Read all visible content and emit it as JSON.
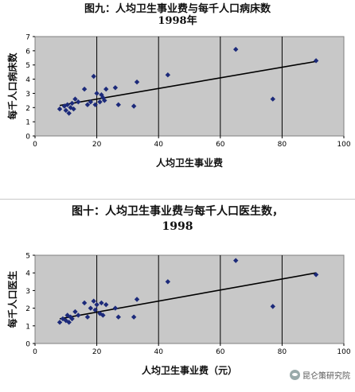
{
  "chart_data": [
    {
      "type": "scatter",
      "title": "图九：人均卫生事业费与每千人口病床数",
      "subtitle": "1998年",
      "xlabel": "人均卫生事业费",
      "ylabel": "每千人口病床数",
      "xlim": [
        0,
        100
      ],
      "ylim": [
        0,
        7
      ],
      "xticks": [
        0,
        20,
        40,
        60,
        80,
        100
      ],
      "yticks": [
        0,
        1,
        2,
        3,
        4,
        5,
        6,
        7
      ],
      "grid": "vertical",
      "marker_color": "#1c2a7a",
      "points": [
        {
          "x": 8,
          "y": 1.9
        },
        {
          "x": 9.5,
          "y": 2.1
        },
        {
          "x": 10,
          "y": 1.8
        },
        {
          "x": 10.5,
          "y": 2.2
        },
        {
          "x": 11,
          "y": 1.6
        },
        {
          "x": 11.5,
          "y": 2.0
        },
        {
          "x": 12,
          "y": 2.3
        },
        {
          "x": 12.5,
          "y": 1.9
        },
        {
          "x": 13,
          "y": 2.6
        },
        {
          "x": 14,
          "y": 2.4
        },
        {
          "x": 16,
          "y": 3.3
        },
        {
          "x": 17,
          "y": 2.2
        },
        {
          "x": 18,
          "y": 2.4
        },
        {
          "x": 19,
          "y": 4.2
        },
        {
          "x": 19.5,
          "y": 2.2
        },
        {
          "x": 20,
          "y": 3.0
        },
        {
          "x": 21,
          "y": 2.4
        },
        {
          "x": 21.5,
          "y": 2.9
        },
        {
          "x": 22,
          "y": 2.7
        },
        {
          "x": 22.5,
          "y": 2.5
        },
        {
          "x": 23,
          "y": 3.3
        },
        {
          "x": 26,
          "y": 3.4
        },
        {
          "x": 27,
          "y": 2.2
        },
        {
          "x": 32,
          "y": 2.1
        },
        {
          "x": 33,
          "y": 3.8
        },
        {
          "x": 43,
          "y": 4.3
        },
        {
          "x": 65,
          "y": 6.1
        },
        {
          "x": 77,
          "y": 2.6
        },
        {
          "x": 91,
          "y": 5.3
        }
      ],
      "trendline": [
        [
          8,
          2.15
        ],
        [
          91,
          5.25
        ]
      ]
    },
    {
      "type": "scatter",
      "title": "图十：人均卫生事业费与每千人口医生数，",
      "subtitle": "1998",
      "xlabel": "人均卫生事业费（元）",
      "ylabel": "每千人口医生",
      "xlim": [
        0,
        100
      ],
      "ylim": [
        0,
        5
      ],
      "xticks": [
        0,
        20,
        40,
        60,
        80,
        100
      ],
      "yticks": [
        0,
        1,
        2,
        3,
        4,
        5
      ],
      "grid": "vertical",
      "marker_color": "#1c2a7a",
      "points": [
        {
          "x": 8,
          "y": 1.2
        },
        {
          "x": 9,
          "y": 1.4
        },
        {
          "x": 10,
          "y": 1.3
        },
        {
          "x": 10.5,
          "y": 1.6
        },
        {
          "x": 11,
          "y": 1.2
        },
        {
          "x": 11.5,
          "y": 1.5
        },
        {
          "x": 12,
          "y": 1.4
        },
        {
          "x": 13,
          "y": 1.8
        },
        {
          "x": 14,
          "y": 1.6
        },
        {
          "x": 16,
          "y": 2.3
        },
        {
          "x": 17,
          "y": 1.5
        },
        {
          "x": 18,
          "y": 2.0
        },
        {
          "x": 19,
          "y": 2.4
        },
        {
          "x": 19.5,
          "y": 1.9
        },
        {
          "x": 20,
          "y": 2.2
        },
        {
          "x": 21,
          "y": 1.7
        },
        {
          "x": 21.5,
          "y": 2.3
        },
        {
          "x": 22,
          "y": 1.6
        },
        {
          "x": 23,
          "y": 2.2
        },
        {
          "x": 26,
          "y": 2.0
        },
        {
          "x": 27,
          "y": 1.5
        },
        {
          "x": 32,
          "y": 1.5
        },
        {
          "x": 33,
          "y": 2.5
        },
        {
          "x": 43,
          "y": 3.5
        },
        {
          "x": 65,
          "y": 4.7
        },
        {
          "x": 77,
          "y": 2.1
        },
        {
          "x": 91,
          "y": 3.9
        }
      ],
      "trendline": [
        [
          8,
          1.4
        ],
        [
          91,
          4.0
        ]
      ]
    }
  ],
  "watermark": "昆仑策研究院"
}
